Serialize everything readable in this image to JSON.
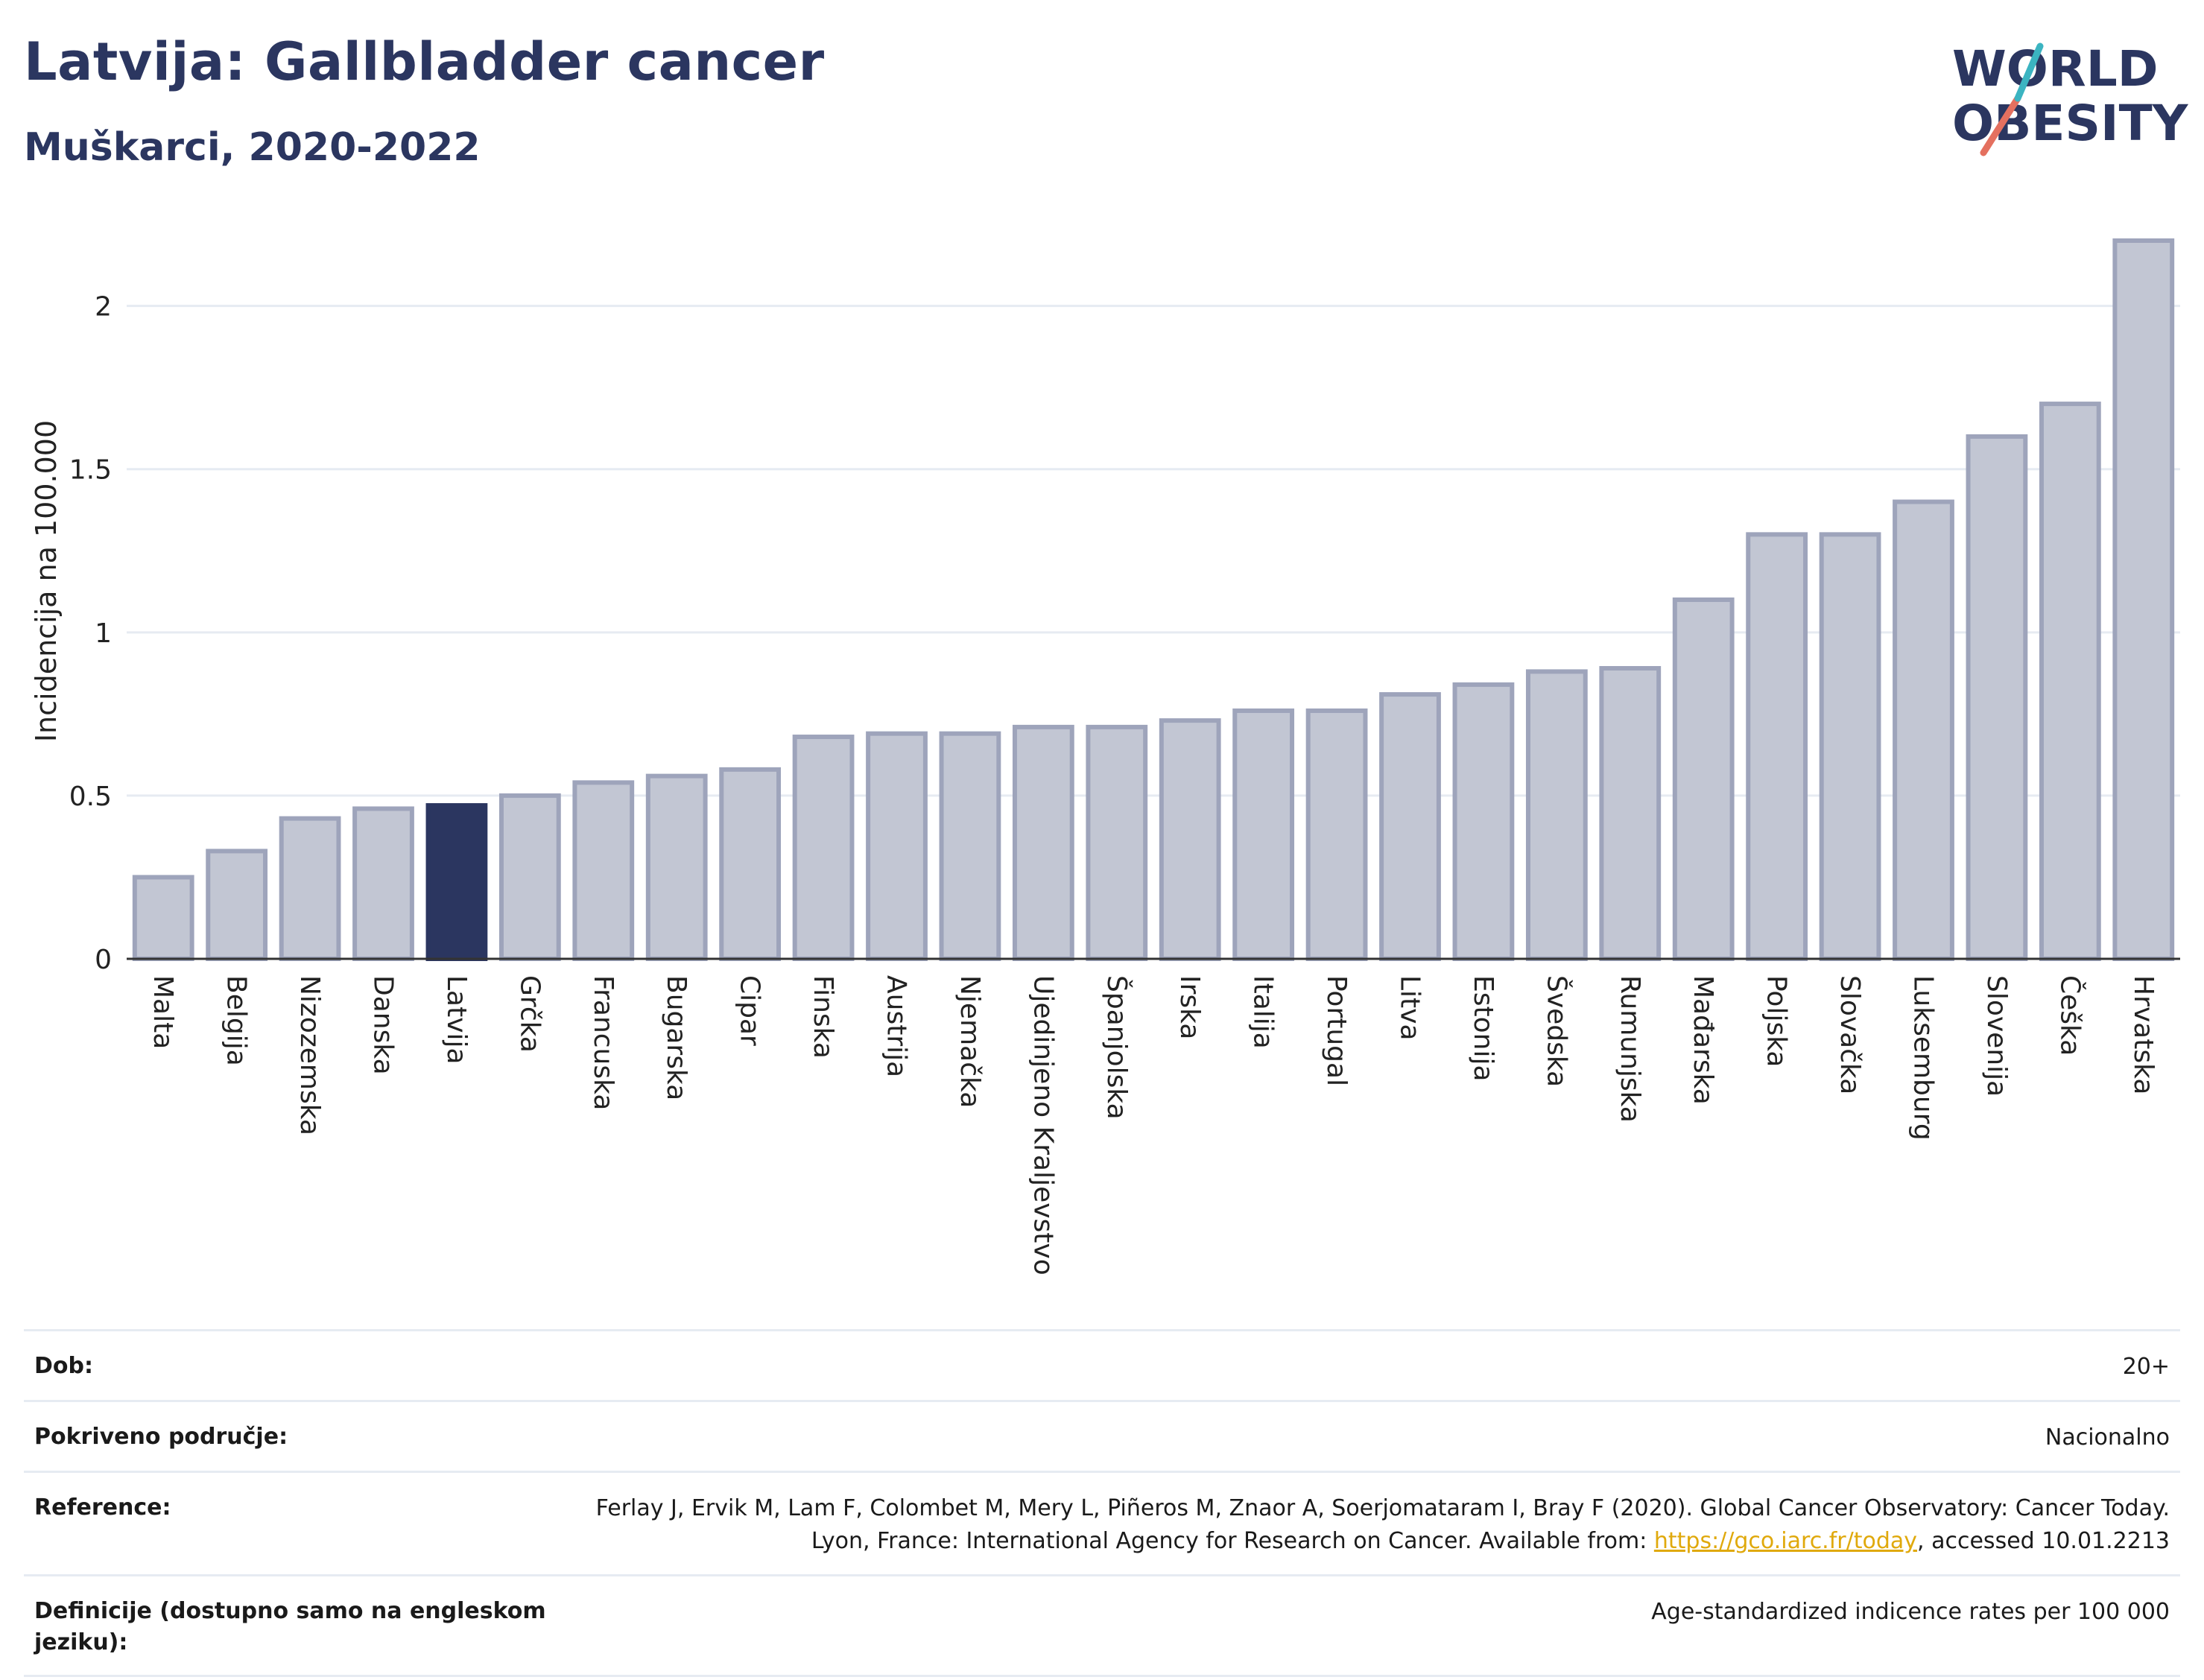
{
  "header": {
    "title": "Latvija: Gallbladder cancer",
    "subtitle": "Muškarci, 2020-2022"
  },
  "logo": {
    "line1": "WORLD",
    "line2": "OBESITY",
    "text": "WORLD OBESITY"
  },
  "colors": {
    "bar": "#c2c6d3",
    "bar_border": "#9ea4bb",
    "highlight": "#2b3660",
    "accent_teal": "#3bb4c1",
    "accent_coral": "#e4705f"
  },
  "chart_data": {
    "type": "bar",
    "title": "Latvija: Gallbladder cancer",
    "subtitle": "Muškarci, 2020-2022",
    "ylabel": "Incidencija na 100.000",
    "xlabel": "",
    "ylim": [
      0,
      2.2
    ],
    "yticks": [
      0,
      0.5,
      1,
      1.5,
      2
    ],
    "ytick_labels": [
      "0",
      "0.5",
      "1",
      "1.5",
      "2"
    ],
    "grid": true,
    "highlight": "Latvija",
    "categories": [
      "Malta",
      "Belgija",
      "Nizozemska",
      "Danska",
      "Latvija",
      "Grčka",
      "Francuska",
      "Bugarska",
      "Cipar",
      "Finska",
      "Austrija",
      "Njemačka",
      "Ujedinjeno Kraljevstvo",
      "Španjolska",
      "Irska",
      "Italija",
      "Portugal",
      "Litva",
      "Estonija",
      "Švedska",
      "Rumunjska",
      "Mađarska",
      "Poljska",
      "Slovačka",
      "Luksemburg",
      "Slovenija",
      "Češka",
      "Hrvatska"
    ],
    "values": [
      0.25,
      0.33,
      0.43,
      0.46,
      0.47,
      0.5,
      0.54,
      0.56,
      0.58,
      0.68,
      0.69,
      0.69,
      0.71,
      0.71,
      0.73,
      0.76,
      0.76,
      0.81,
      0.84,
      0.88,
      0.89,
      1.1,
      1.3,
      1.3,
      1.4,
      1.6,
      1.7,
      2.2
    ]
  },
  "meta": {
    "age_label": "Dob:",
    "age_value": "20+",
    "coverage_label": "Pokriveno područje:",
    "coverage_value": "Nacionalno",
    "reference_label": "Reference:",
    "reference_text_1": "Ferlay J, Ervik M, Lam F, Colombet M, Mery L, Piñeros M, Znaor A, Soerjomataram I, Bray F (2020). Global Cancer Observatory: Cancer Today. Lyon, France: International Agency for Research on Cancer. Available from: ",
    "reference_link": "https://gco.iarc.fr/today",
    "reference_text_2": ", accessed 10.01.2213",
    "definition_label": "Definicije (dostupno samo na engleskom jeziku):",
    "definition_value": "Age-standardized indicence rates per 100 000"
  }
}
